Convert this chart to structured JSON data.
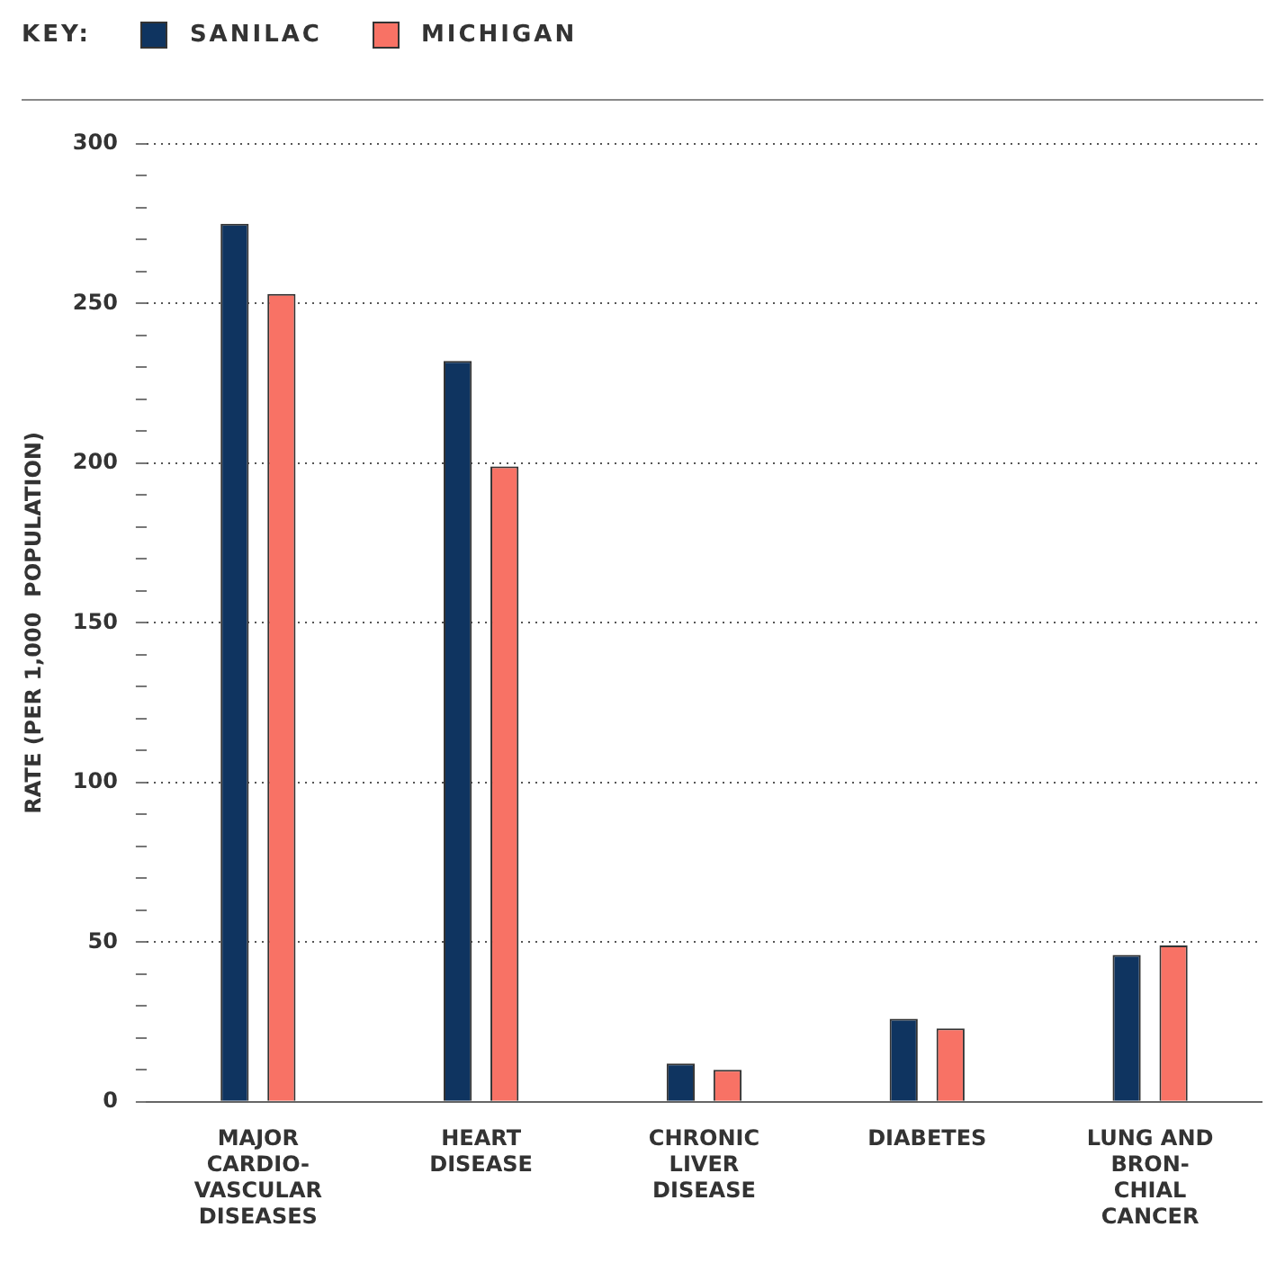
{
  "chart_data": {
    "type": "bar",
    "legend_title": "KEY:",
    "legend": "top left",
    "ylabel": "RATE (PER 1,000  POPULATION)",
    "categories": [
      "MAJOR CARDIO-VASCULAR DISEASES",
      "HEART DISEASE",
      "CHRONIC LIVER DISEASE",
      "DIABETES",
      "LUNG AND BRON-CHIAL CANCER"
    ],
    "series": [
      {
        "name": "SANILAC",
        "color": "#0f3460",
        "values": [
          275,
          232,
          12,
          26,
          46
        ]
      },
      {
        "name": "MICHIGAN",
        "color": "#f87265",
        "values": [
          253,
          199,
          10,
          23,
          49
        ]
      }
    ],
    "ylim": [
      0,
      300
    ],
    "yticks": [
      0,
      {
        "value": 10,
        "label": null
      },
      {
        "value": 20,
        "label": null
      },
      {
        "value": 30,
        "label": null
      },
      {
        "value": 40,
        "label": null
      },
      50,
      {
        "value": 60,
        "label": null
      },
      {
        "value": 70,
        "label": null
      },
      {
        "value": 80,
        "label": null
      },
      {
        "value": 90,
        "label": null
      },
      100,
      {
        "value": 110,
        "label": null
      },
      {
        "value": 120,
        "label": null
      },
      {
        "value": 130,
        "label": null
      },
      {
        "value": 140,
        "label": null
      },
      150,
      {
        "value": 160,
        "label": null
      },
      {
        "value": 170,
        "label": null
      },
      {
        "value": 180,
        "label": null
      },
      {
        "value": 190,
        "label": null
      },
      200,
      {
        "value": 210,
        "label": null
      },
      {
        "value": 220,
        "label": null
      },
      {
        "value": 230,
        "label": null
      },
      {
        "value": 240,
        "label": null
      },
      250,
      {
        "value": 260,
        "label": null
      },
      {
        "value": 270,
        "label": null
      },
      {
        "value": 280,
        "label": null
      },
      {
        "value": 290,
        "label": null
      },
      300
    ],
    "grid": "y"
  }
}
